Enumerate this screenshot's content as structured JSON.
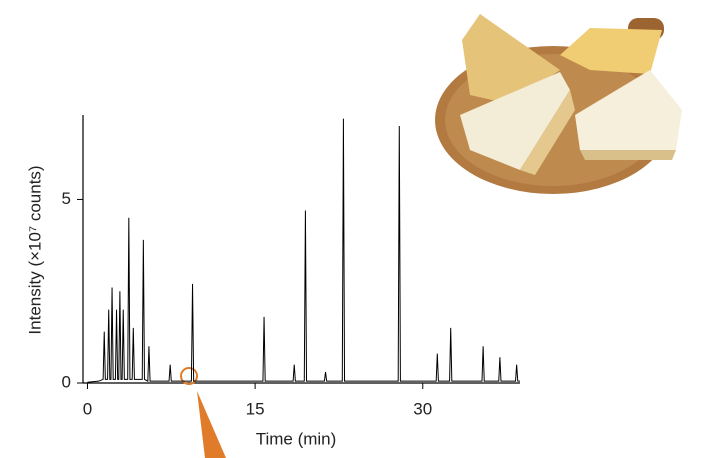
{
  "chart_data": {
    "type": "line",
    "xlabel": "Time (min)",
    "ylabel": "Intensity (×10⁷ counts)",
    "x": [
      0,
      1.0,
      1.4,
      1.5,
      1.6,
      1.8,
      1.9,
      2.0,
      2.1,
      2.2,
      2.3,
      2.5,
      2.6,
      2.7,
      2.8,
      2.9,
      3.0,
      3.1,
      3.2,
      3.3,
      3.6,
      3.7,
      3.8,
      4.0,
      4.1,
      4.2,
      4.9,
      5.0,
      5.1,
      5.4,
      5.5,
      5.6,
      7.3,
      7.4,
      7.5,
      9.3,
      9.4,
      9.5,
      15.7,
      15.8,
      15.9,
      18.4,
      18.5,
      18.6,
      19.4,
      19.5,
      19.6,
      21.2,
      21.3,
      21.4,
      22.8,
      22.9,
      23.0,
      27.8,
      27.9,
      28.0,
      31.2,
      31.3,
      31.4,
      32.4,
      32.5,
      32.6,
      35.3,
      35.4,
      35.5,
      36.8,
      36.9,
      37.0,
      38.3,
      38.4,
      38.5,
      38.7
    ],
    "values": [
      0.02,
      0.05,
      0.1,
      1.4,
      0.1,
      0.1,
      2.0,
      0.1,
      0.1,
      2.6,
      0.1,
      0.1,
      2.0,
      0.1,
      0.1,
      2.5,
      0.1,
      0.1,
      2.0,
      0.1,
      0.1,
      4.5,
      0.1,
      0.1,
      1.5,
      0.1,
      0.1,
      3.9,
      0.1,
      0.05,
      1.0,
      0.05,
      0.05,
      0.5,
      0.05,
      0.05,
      2.7,
      0.05,
      0.05,
      1.8,
      0.05,
      0.05,
      0.5,
      0.05,
      0.05,
      4.7,
      0.05,
      0.05,
      0.3,
      0.05,
      0.05,
      7.2,
      0.05,
      0.05,
      7.0,
      0.05,
      0.05,
      0.8,
      0.05,
      0.05,
      1.5,
      0.05,
      0.05,
      1.0,
      0.05,
      0.05,
      0.7,
      0.05,
      0.05,
      0.5,
      0.05,
      0.05
    ],
    "color": "#000000",
    "xlim": [
      -0.4,
      38.7
    ],
    "xticks": [
      0,
      15,
      30
    ],
    "ylim": [
      0,
      7.3
    ],
    "yticks": [
      0,
      5
    ],
    "grid": false
  }
}
